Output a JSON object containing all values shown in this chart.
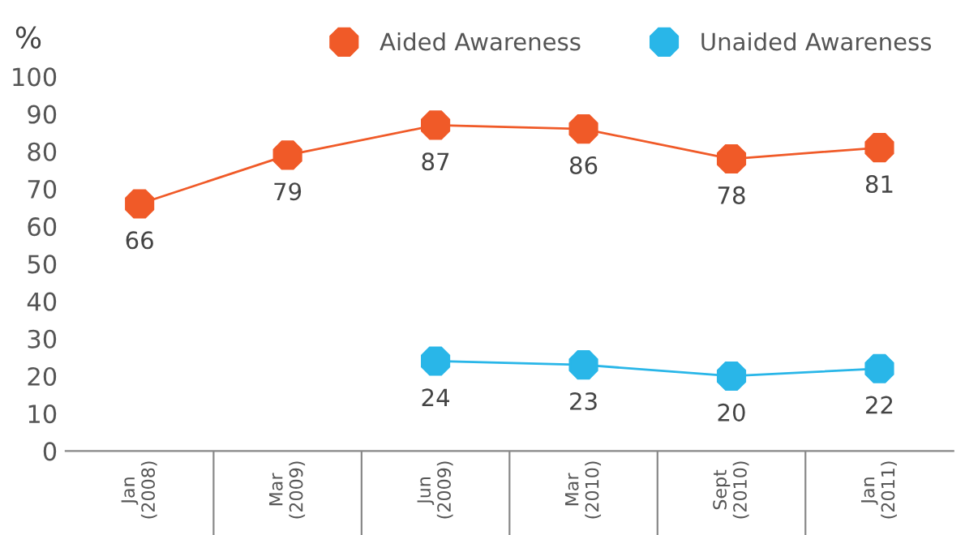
{
  "chart_data": {
    "type": "line",
    "ylabel": "%",
    "categories": [
      "Jan\n(2008)",
      "Mar\n(2009)",
      "Jun\n(2009)",
      "Mar\n(2010)",
      "Sept\n(2010)",
      "Jan\n(2011)"
    ],
    "series": [
      {
        "name": "Aided Awareness",
        "color": "#f05a28",
        "values": [
          66,
          79,
          87,
          86,
          78,
          81
        ]
      },
      {
        "name": "Unaided Awareness",
        "color": "#29b6e8",
        "values": [
          null,
          null,
          24,
          23,
          20,
          22
        ]
      }
    ],
    "ylim": [
      0,
      100
    ],
    "yticks": [
      0,
      10,
      20,
      30,
      40,
      50,
      60,
      70,
      80,
      90,
      100
    ],
    "data_labels": true,
    "marker": "circle",
    "line_style": "solid",
    "legend": "top right",
    "grid": false
  }
}
